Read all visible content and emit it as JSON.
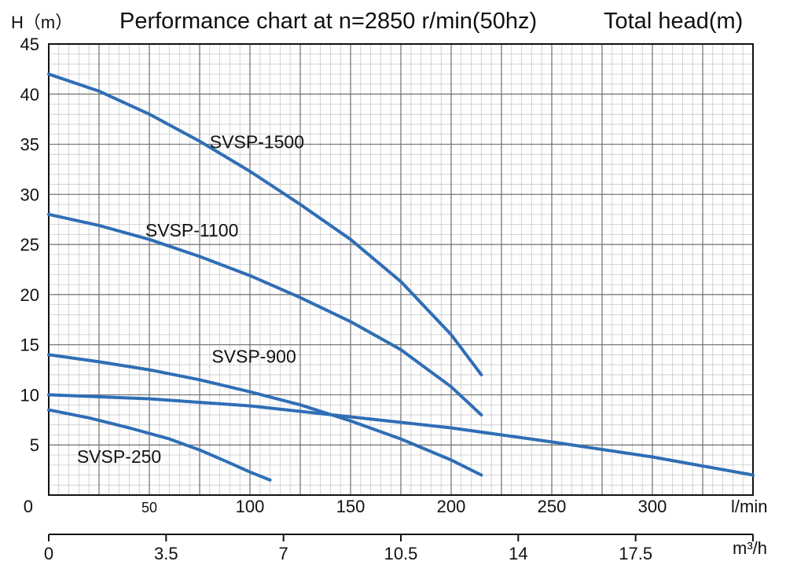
{
  "chart_data": {
    "type": "line",
    "title": "Performance chart at n=2850 r/min(50hz)",
    "title_right": "Total head(m)",
    "ylabel": "H（m）",
    "xlabel_primary": "l/min",
    "xlabel_secondary": "m³/h",
    "xlim": [
      0,
      350
    ],
    "ylim": [
      0,
      45
    ],
    "grid": true,
    "y_ticks": [
      0,
      5,
      10,
      15,
      20,
      25,
      30,
      35,
      40,
      45
    ],
    "y_tick_labels": [
      "0",
      "5",
      "10",
      "15",
      "20",
      "25",
      "30",
      "35",
      "40",
      "45"
    ],
    "x_ticks": [
      50,
      100,
      150,
      200,
      250,
      300
    ],
    "x_tick_labels": [
      "50",
      "100",
      "150",
      "200",
      "250",
      "300"
    ],
    "x2_ticks": [
      0,
      3.5,
      7,
      10.5,
      14,
      17.5
    ],
    "x2_tick_labels": [
      "0",
      "3.5",
      "7",
      "10.5",
      "14",
      "17.5"
    ],
    "line_color": "#2f6eb5",
    "series": [
      {
        "name": "SVSP-1500",
        "x": [
          0,
          25,
          50,
          75,
          100,
          125,
          150,
          175,
          200,
          215
        ],
        "y": [
          42,
          40.3,
          38,
          35.3,
          32.3,
          29,
          25.5,
          21.3,
          16,
          12
        ]
      },
      {
        "name": "SVSP-1100",
        "x": [
          0,
          25,
          50,
          75,
          100,
          125,
          150,
          175,
          200,
          215
        ],
        "y": [
          28,
          26.9,
          25.5,
          23.8,
          21.9,
          19.7,
          17.3,
          14.5,
          10.8,
          8
        ]
      },
      {
        "name": "SVSP-900",
        "x": [
          0,
          25,
          50,
          75,
          100,
          125,
          150,
          175,
          200,
          215
        ],
        "y": [
          14,
          13.3,
          12.5,
          11.5,
          10.3,
          9,
          7.4,
          5.6,
          3.5,
          2
        ]
      },
      {
        "name": "",
        "x": [
          0,
          50,
          100,
          150,
          200,
          250,
          300,
          350
        ],
        "y": [
          10,
          9.6,
          8.9,
          7.8,
          6.7,
          5.3,
          3.8,
          2
        ]
      },
      {
        "name": "SVSP-250",
        "x": [
          0,
          20,
          40,
          60,
          75,
          90,
          100,
          110
        ],
        "y": [
          8.5,
          7.7,
          6.7,
          5.6,
          4.5,
          3.2,
          2.3,
          1.5
        ]
      }
    ]
  }
}
